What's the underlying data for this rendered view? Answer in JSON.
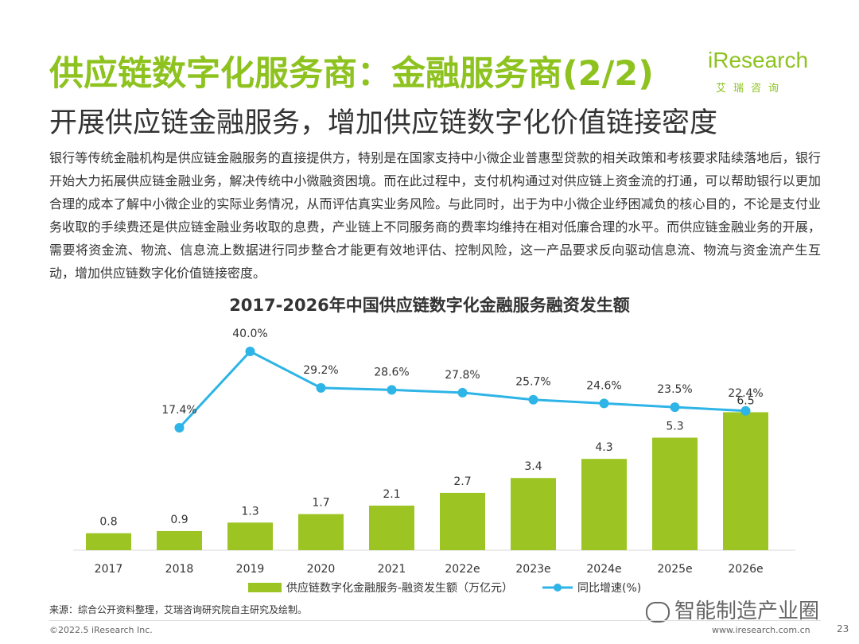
{
  "header": {
    "title": "供应链数字化服务商：金融服务商(2/2)",
    "subtitle": "开展供应链金融服务，增加供应链数字化价值链接密度"
  },
  "logo": {
    "main": "iResearch",
    "sub": "艾瑞咨询",
    "color": "#8dc21f"
  },
  "body": {
    "paragraph": "银行等传统金融机构是供应链金融服务的直接提供方，特别是在国家支持中小微企业普惠型贷款的相关政策和考核要求陆续落地后，银行开始大力拓展供应链金融业务，解决传统中小微融资困境。而在此过程中，支付机构通过对供应链上资金流的打通，可以帮助银行以更加合理的成本了解中小微企业的实际业务情况，从而评估真实业务风险。与此同时，出于为中小微企业纾困减负的核心目的，不论是支付业务收取的手续费还是供应链金融业务收取的息费，产业链上不同服务商的费率均维持在相对低廉合理的水平。而供应链金融业务的开展，需要将资金流、物流、信息流上数据进行同步整合才能更有效地评估、控制风险，这一产品要求反向驱动信息流、物流与资金流产生互动，增加供应链数字化价值链接密度。"
  },
  "chart_data": {
    "type": "bar",
    "title": "2017-2026年中国供应链数字化金融服务融资发生额",
    "categories": [
      "2017",
      "2018",
      "2019",
      "2020",
      "2021",
      "2022e",
      "2023e",
      "2024e",
      "2025e",
      "2026e"
    ],
    "series": [
      {
        "name": "供应链数字化金融服务-融资发生额（万亿元）",
        "type": "bar",
        "color": "#9cc524",
        "values": [
          0.8,
          0.9,
          1.3,
          1.7,
          2.1,
          2.7,
          3.4,
          4.3,
          5.3,
          6.5
        ],
        "labels": [
          "0.8",
          "0.9",
          "1.3",
          "1.7",
          "2.1",
          "2.7",
          "3.4",
          "4.3",
          "5.3",
          "6.5"
        ]
      },
      {
        "name": "同比增速(%)",
        "type": "line",
        "color": "#2eb4e6",
        "values": [
          null,
          17.4,
          40.0,
          29.2,
          28.6,
          27.8,
          25.7,
          24.6,
          23.5,
          22.4
        ],
        "labels": [
          "",
          "17.4%",
          "40.0%",
          "29.2%",
          "28.6%",
          "27.8%",
          "25.7%",
          "24.6%",
          "23.5%",
          "22.4%"
        ]
      }
    ],
    "legend_position": "bottom",
    "grid": false
  },
  "footer": {
    "source": "来源：综合公开资料整理，艾瑞咨询研究院自主研究及绘制。",
    "watermark": "智能制造产业圈",
    "copyright": "©2022.5 iResearch Inc.",
    "website": "www.iresearch.com.cn",
    "page": "23"
  }
}
